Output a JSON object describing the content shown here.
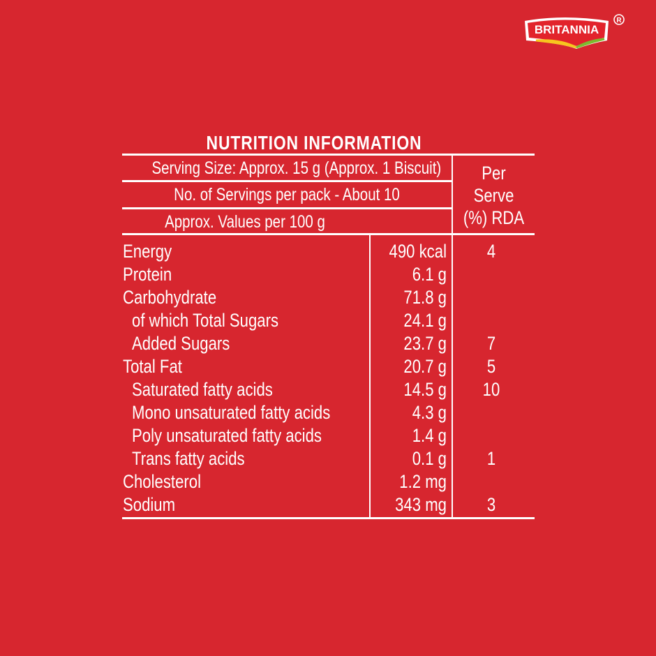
{
  "brand": {
    "name": "BRITANNIA",
    "registered": "®"
  },
  "title": "NUTRITION INFORMATION",
  "header": {
    "serving_size": "Serving Size: Approx. 15 g (Approx. 1 Biscuit)",
    "servings_per_pack": "No. of Servings per pack - About 10",
    "values_per": "Approx. Values per 100 g",
    "rda_col": [
      "Per",
      "Serve",
      "(%) RDA"
    ]
  },
  "rows": [
    {
      "name": "Energy",
      "value": "490 kcal",
      "rda": "4",
      "indent": false
    },
    {
      "name": "Protein",
      "value": "6.1 g",
      "rda": "",
      "indent": false
    },
    {
      "name": "Carbohydrate",
      "value": "71.8 g",
      "rda": "",
      "indent": false
    },
    {
      "name": "of which Total Sugars",
      "value": "24.1 g",
      "rda": "",
      "indent": true
    },
    {
      "name": "Added Sugars",
      "value": "23.7 g",
      "rda": "7",
      "indent": true
    },
    {
      "name": "Total Fat",
      "value": "20.7 g",
      "rda": "5",
      "indent": false
    },
    {
      "name": "Saturated fatty acids",
      "value": "14.5 g",
      "rda": "10",
      "indent": true
    },
    {
      "name": "Mono unsaturated fatty acids",
      "value": "4.3 g",
      "rda": "",
      "indent": true
    },
    {
      "name": "Poly unsaturated fatty acids",
      "value": "1.4 g",
      "rda": "",
      "indent": true
    },
    {
      "name": "Trans fatty acids",
      "value": "0.1 g",
      "rda": "1",
      "indent": true
    },
    {
      "name": "Cholesterol",
      "value": "1.2 mg",
      "rda": "",
      "indent": false
    },
    {
      "name": "Sodium",
      "value": "343 mg",
      "rda": "3",
      "indent": false
    }
  ],
  "colors": {
    "background": "#d7262f",
    "text": "#ffffff",
    "logo_red": "#e2232b",
    "logo_yellow": "#f7c51e",
    "logo_green": "#7dbb2f"
  }
}
